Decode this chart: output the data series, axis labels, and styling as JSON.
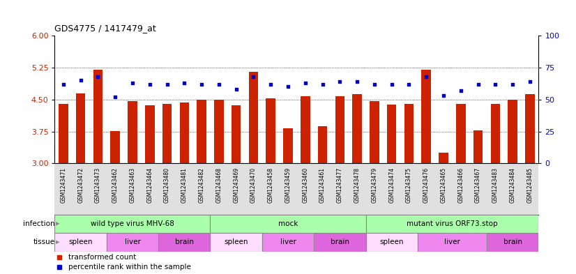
{
  "title": "GDS4775 / 1417479_at",
  "samples": [
    "GSM1243471",
    "GSM1243472",
    "GSM1243473",
    "GSM1243462",
    "GSM1243463",
    "GSM1243464",
    "GSM1243480",
    "GSM1243481",
    "GSM1243482",
    "GSM1243468",
    "GSM1243469",
    "GSM1243470",
    "GSM1243458",
    "GSM1243459",
    "GSM1243460",
    "GSM1243461",
    "GSM1243477",
    "GSM1243478",
    "GSM1243479",
    "GSM1243474",
    "GSM1243475",
    "GSM1243476",
    "GSM1243465",
    "GSM1243466",
    "GSM1243467",
    "GSM1243483",
    "GSM1243484",
    "GSM1243485"
  ],
  "bar_values": [
    4.4,
    4.65,
    5.2,
    3.76,
    4.47,
    4.37,
    4.4,
    4.43,
    4.49,
    4.5,
    4.37,
    5.15,
    4.53,
    3.82,
    4.57,
    3.87,
    4.57,
    4.63,
    4.47,
    4.38,
    4.4,
    5.2,
    3.25,
    4.4,
    3.77,
    4.4,
    4.5,
    4.63
  ],
  "percentile_values": [
    62,
    65,
    68,
    52,
    63,
    62,
    62,
    63,
    62,
    62,
    58,
    68,
    62,
    60,
    63,
    62,
    64,
    64,
    62,
    62,
    62,
    68,
    53,
    57,
    62,
    62,
    62,
    64
  ],
  "ylim_left": [
    3.0,
    6.0
  ],
  "ylim_right": [
    0,
    100
  ],
  "yticks_left": [
    3.0,
    3.75,
    4.5,
    5.25,
    6.0
  ],
  "yticks_right": [
    0,
    25,
    50,
    75,
    100
  ],
  "bar_color": "#cc2200",
  "dot_color": "#0000cc",
  "bar_bottom": 3.0,
  "infection_groups": [
    {
      "label": "wild type virus MHV-68",
      "start": 0,
      "end": 9
    },
    {
      "label": "mock",
      "start": 9,
      "end": 18
    },
    {
      "label": "mutant virus ORF73.stop",
      "start": 18,
      "end": 28
    }
  ],
  "infection_color": "#aaffaa",
  "tissue_groups": [
    {
      "label": "spleen",
      "start": 0,
      "end": 3,
      "color": "#ffddff"
    },
    {
      "label": "liver",
      "start": 3,
      "end": 6,
      "color": "#ee88ee"
    },
    {
      "label": "brain",
      "start": 6,
      "end": 9,
      "color": "#dd66dd"
    },
    {
      "label": "spleen",
      "start": 9,
      "end": 12,
      "color": "#ffddff"
    },
    {
      "label": "liver",
      "start": 12,
      "end": 15,
      "color": "#ee88ee"
    },
    {
      "label": "brain",
      "start": 15,
      "end": 18,
      "color": "#dd66dd"
    },
    {
      "label": "spleen",
      "start": 18,
      "end": 21,
      "color": "#ffddff"
    },
    {
      "label": "liver",
      "start": 21,
      "end": 25,
      "color": "#ee88ee"
    },
    {
      "label": "brain",
      "start": 25,
      "end": 28,
      "color": "#dd66dd"
    }
  ],
  "legend_items": [
    {
      "label": "transformed count",
      "color": "#cc2200",
      "marker": "s"
    },
    {
      "label": "percentile rank within the sample",
      "color": "#0000cc",
      "marker": "s"
    }
  ],
  "gridline_color": "#000000",
  "background_color": "#ffffff",
  "axis_label_color_left": "#cc2200",
  "axis_label_color_right": "#0000cc",
  "tick_bg_color": "#e0e0e0"
}
